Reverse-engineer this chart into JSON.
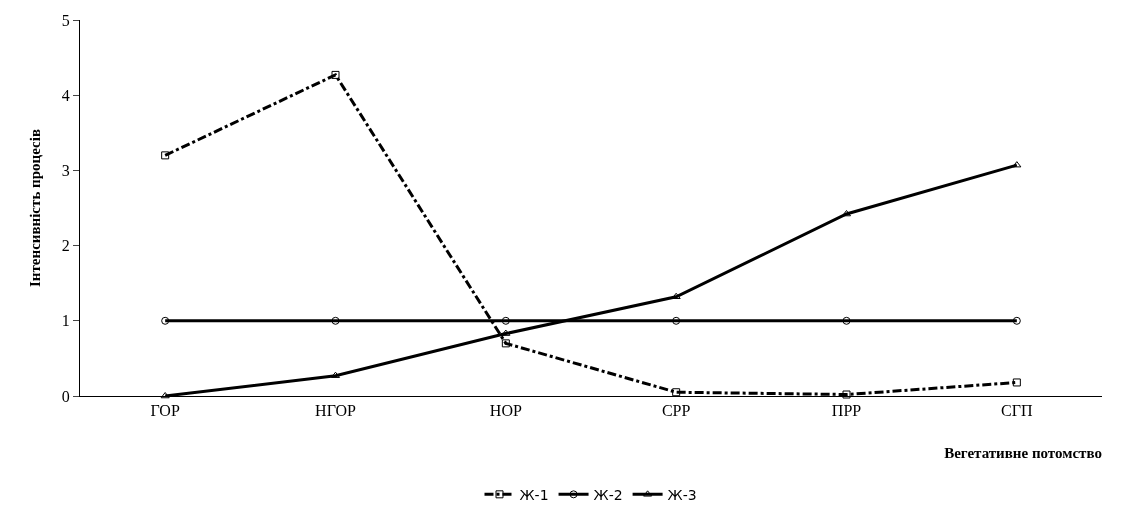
{
  "chart_data": {
    "type": "line",
    "xlabel": "Вегетативне потомство",
    "ylabel": "Інтенсивність процесів",
    "categories": [
      "ГОР",
      "НГОР",
      "НОР",
      "СРР",
      "ПРР",
      "СГП"
    ],
    "series": [
      {
        "name": "Ж-1",
        "color": "#000000",
        "marker": "square",
        "line_style": "dashed",
        "values": [
          3.2,
          4.27,
          0.7,
          0.05,
          0.02,
          0.18
        ]
      },
      {
        "name": "Ж-2",
        "color": "#000000",
        "marker": "circle",
        "line_style": "solid",
        "values": [
          1,
          1,
          1,
          1,
          1,
          1
        ]
      },
      {
        "name": "Ж-3",
        "color": "#000000",
        "marker": "triangle",
        "line_style": "solid",
        "values": [
          0,
          0.27,
          0.83,
          1.32,
          2.42,
          3.07
        ]
      }
    ],
    "ylim": [
      0,
      5
    ],
    "yticks": [
      0,
      1,
      2,
      3,
      4,
      5
    ],
    "grid": false,
    "legend": "bottom"
  }
}
